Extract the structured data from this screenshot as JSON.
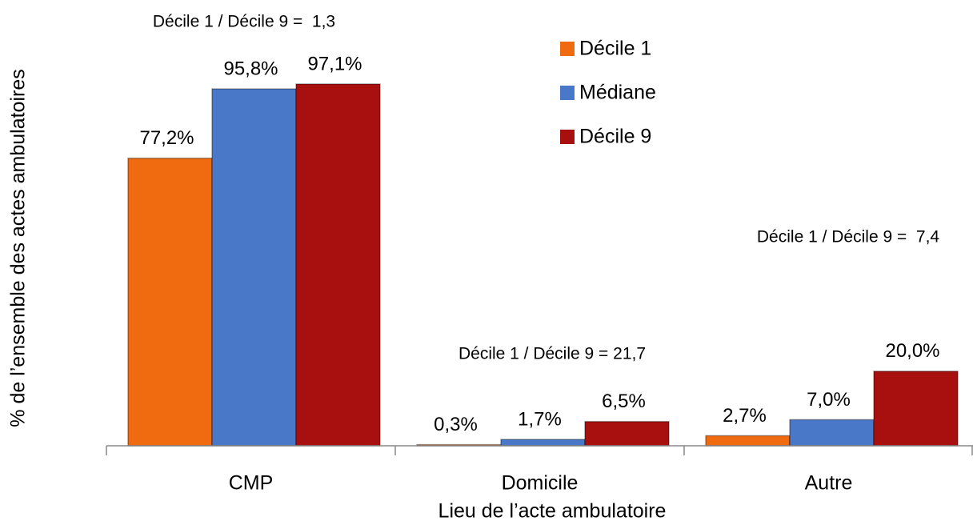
{
  "chart_data": {
    "type": "bar",
    "x_label": "Lieu de l’acte ambulatoire",
    "y_label": "% de l’ensemble des actes ambulatoires",
    "categories": [
      "CMP",
      "Domicile",
      "Autre"
    ],
    "series": [
      {
        "name": "Décile 1",
        "color": "#f06a10",
        "values": [
          77.2,
          0.3,
          2.7
        ],
        "value_labels": [
          "77,2%",
          "0,3%",
          "2,7%"
        ]
      },
      {
        "name": "Médiane",
        "color": "#4a78c8",
        "values": [
          95.8,
          1.7,
          7.0
        ],
        "value_labels": [
          "95,8%",
          "1,7%",
          "7,0%"
        ]
      },
      {
        "name": "Décile 9",
        "color": "#a81010",
        "values": [
          97.1,
          6.5,
          20.0
        ],
        "value_labels": [
          "97,1%",
          "6,5%",
          "20,0%"
        ]
      }
    ],
    "annotations": [
      "Décile 1 / Décile 9 =  1,3",
      "Décile 1 / Décile 9 = 21,7",
      "Décile 1 / Décile 9 =  7,4"
    ],
    "ylim": [
      0,
      100
    ]
  }
}
